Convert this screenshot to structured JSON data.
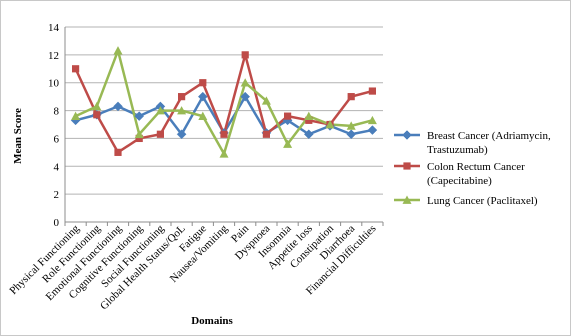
{
  "chart_data": {
    "type": "line",
    "title": "",
    "xlabel": "Domains",
    "ylabel": "Mean Score",
    "ylim": [
      0,
      14
    ],
    "yticks": [
      0,
      2,
      4,
      6,
      8,
      10,
      12,
      14
    ],
    "grid": "horizontal",
    "legend_position": "right",
    "categories": [
      "Physical Functioning",
      "Role Functioning",
      "Emotional Functioning",
      "Cognitive Functioning",
      "Social Functioning",
      "Global Health Status/QoL",
      "Fatigue",
      "Nausea/Vomiting",
      "Pain",
      "Dyspnoea",
      "Insomnia",
      "Appetite loss",
      "Constipation",
      "Diarrhoea",
      "Financial Difficulties"
    ],
    "series": [
      {
        "name": "Breast Cancer (Adriamycin, Trastuzumab)",
        "legend_lines": [
          "Breast Cancer (Adriamycin,",
          "Trastuzumab)"
        ],
        "color": "#4a7ebb",
        "marker": "diamond",
        "values": [
          7.3,
          7.7,
          8.3,
          7.6,
          8.3,
          6.3,
          9.0,
          6.4,
          9.0,
          6.4,
          7.3,
          6.3,
          6.9,
          6.3,
          6.6
        ]
      },
      {
        "name": "Colon Rectum Cancer (Capecitabine)",
        "legend_lines": [
          "Colon Rectum Cancer",
          "(Capecitabine)"
        ],
        "color": "#be4b48",
        "marker": "square",
        "values": [
          11.0,
          7.7,
          5.0,
          6.0,
          6.3,
          9.0,
          10.0,
          6.3,
          12.0,
          6.3,
          7.6,
          7.3,
          7.0,
          9.0,
          9.4
        ]
      },
      {
        "name": "Lung Cancer (Paclitaxel)",
        "legend_lines": [
          "Lung Cancer (Paclitaxel)"
        ],
        "color": "#98b954",
        "marker": "triangle",
        "values": [
          7.6,
          8.3,
          12.3,
          6.3,
          8.0,
          8.0,
          7.6,
          4.9,
          10.0,
          8.7,
          5.6,
          7.6,
          7.0,
          6.9,
          7.3
        ]
      }
    ]
  }
}
